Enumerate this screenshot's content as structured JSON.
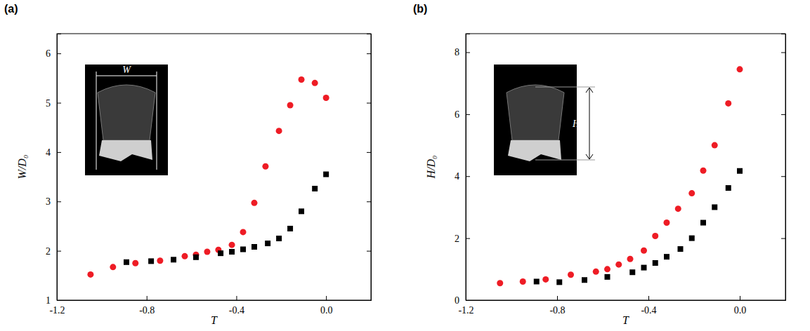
{
  "chart_data": [
    {
      "type": "scatter",
      "title": "(a)",
      "x_label": "T",
      "y_label": "W/D₀",
      "annotations": [
        {
          "text": "W"
        }
      ],
      "xlim": [
        -1.2,
        0.2
      ],
      "xticks": [
        -1.2,
        -0.8,
        -0.4,
        {
          "value": 0,
          "label": "0.0"
        }
      ],
      "ylim": [
        1,
        6.4
      ],
      "yticks": [
        1,
        2,
        3,
        4,
        5,
        6
      ],
      "series": [
        {
          "color": "#ee1c25",
          "marker": "circle",
          "x": [
            -1.05,
            -0.95,
            -0.85,
            -0.74,
            -0.63,
            -0.58,
            -0.53,
            -0.48,
            -0.42,
            -0.37,
            -0.32,
            -0.27,
            -0.21,
            -0.16,
            -0.11,
            -0.05,
            0.0
          ],
          "values": [
            1.52,
            1.67,
            1.75,
            1.8,
            1.89,
            1.92,
            1.98,
            2.02,
            2.12,
            2.38,
            2.97,
            3.71,
            4.43,
            4.95,
            5.47,
            5.4,
            5.1
          ]
        },
        {
          "color": "#000000",
          "marker": "square",
          "x": [
            -0.89,
            -0.78,
            -0.68,
            -0.58,
            -0.47,
            -0.42,
            -0.37,
            -0.32,
            -0.26,
            -0.21,
            -0.16,
            -0.11,
            -0.05,
            0.0
          ],
          "values": [
            1.77,
            1.79,
            1.82,
            1.87,
            1.95,
            1.98,
            2.03,
            2.08,
            2.15,
            2.25,
            2.45,
            2.8,
            3.26,
            3.55
          ]
        }
      ]
    },
    {
      "type": "scatter",
      "title": "(b)",
      "x_label": "T",
      "y_label": "H/D₀",
      "annotations": [
        {
          "text": "H"
        }
      ],
      "xlim": [
        -1.2,
        0.2
      ],
      "xticks": [
        -1.2,
        -0.8,
        -0.4,
        {
          "value": 0,
          "label": "0.0"
        }
      ],
      "ylim": [
        0,
        8.6
      ],
      "yticks": [
        0,
        2,
        4,
        6,
        8
      ],
      "series": [
        {
          "color": "#ee1c25",
          "marker": "circle",
          "x": [
            -1.05,
            -0.95,
            -0.85,
            -0.74,
            -0.63,
            -0.58,
            -0.53,
            -0.48,
            -0.42,
            -0.37,
            -0.32,
            -0.27,
            -0.21,
            -0.16,
            -0.11,
            -0.05,
            0.0
          ],
          "values": [
            0.55,
            0.6,
            0.67,
            0.82,
            0.92,
            1.0,
            1.15,
            1.33,
            1.6,
            2.07,
            2.5,
            2.95,
            3.45,
            4.18,
            5.0,
            6.35,
            7.45
          ]
        },
        {
          "color": "#000000",
          "marker": "square",
          "x": [
            -0.89,
            -0.79,
            -0.68,
            -0.58,
            -0.47,
            -0.42,
            -0.37,
            -0.32,
            -0.26,
            -0.21,
            -0.16,
            -0.11,
            -0.05,
            0.0
          ],
          "values": [
            0.6,
            0.58,
            0.65,
            0.75,
            0.9,
            1.05,
            1.2,
            1.4,
            1.65,
            2.0,
            2.5,
            3.0,
            3.62,
            4.17
          ]
        }
      ]
    }
  ]
}
